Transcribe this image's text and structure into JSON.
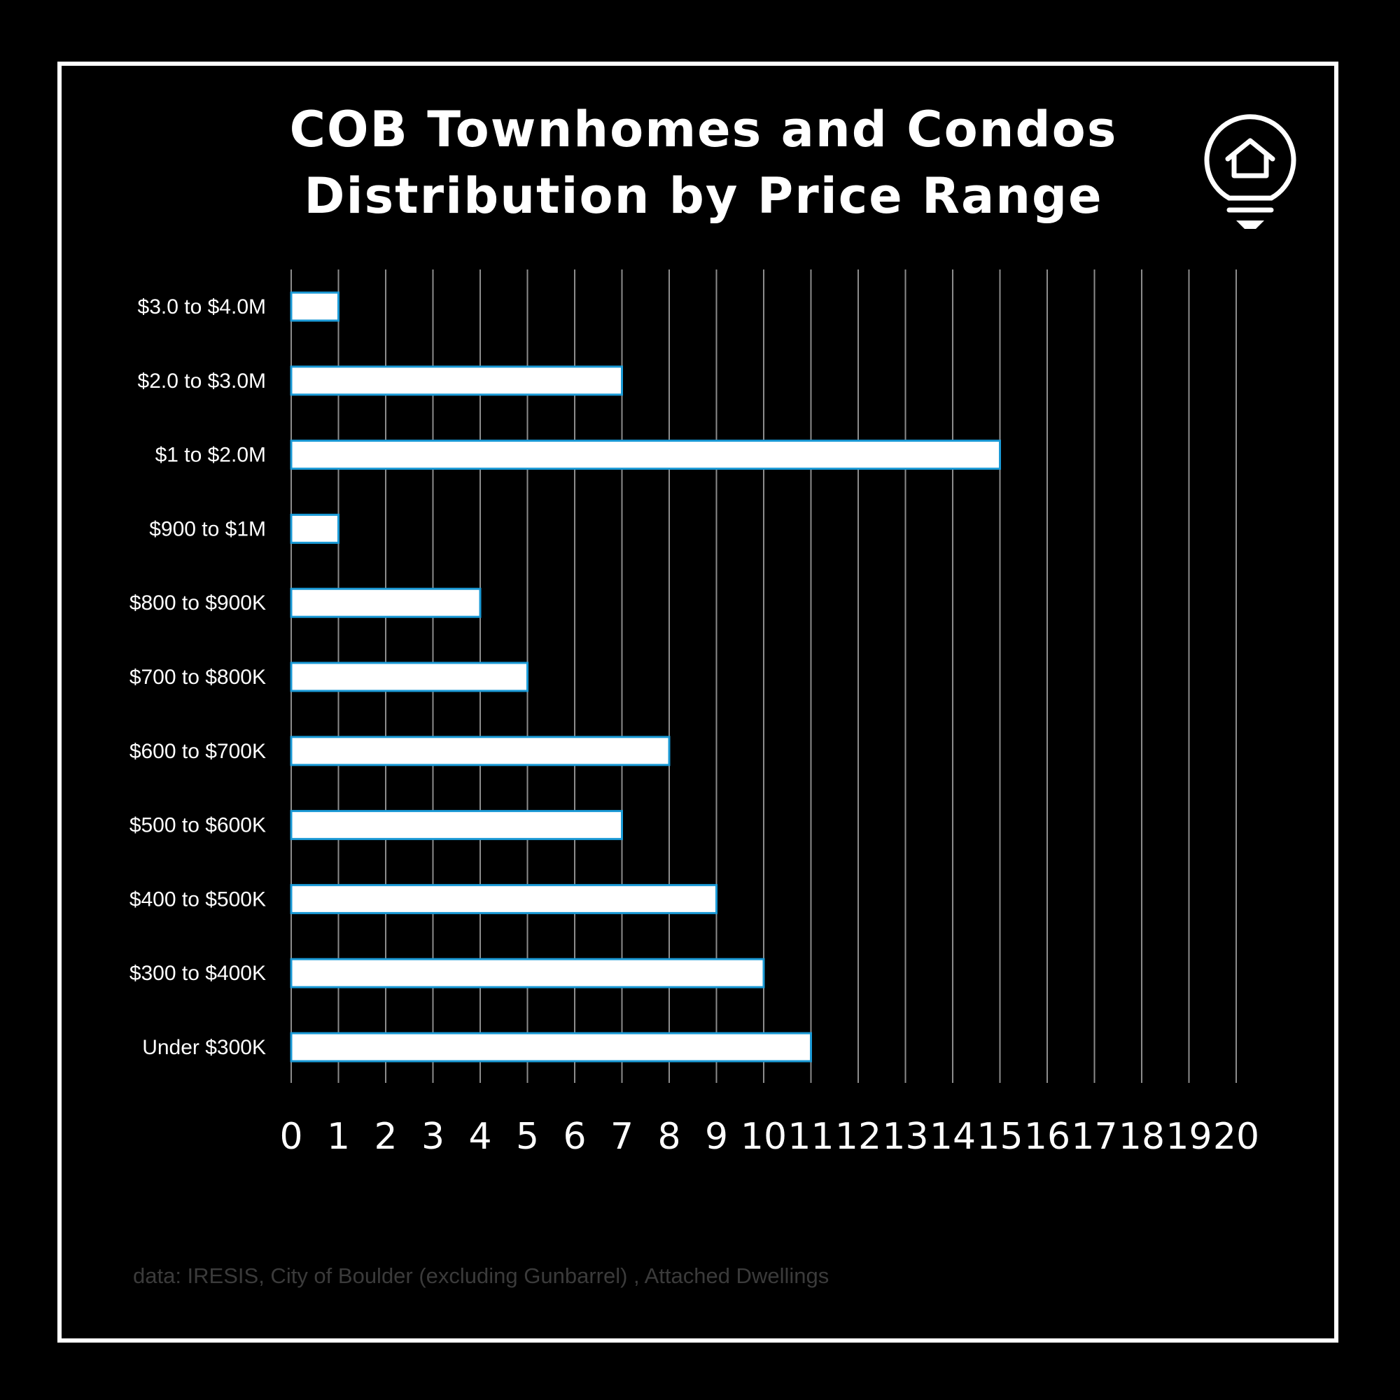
{
  "chart_data": {
    "type": "bar",
    "orientation": "horizontal",
    "title": "COB Townhomes and Condos Distribution by Price Range",
    "title_lines": [
      "COB Townhomes and Condos",
      "Distribution by Price Range"
    ],
    "categories": [
      "$3.0 to $4.0M",
      "$2.0 to $3.0M",
      "$1 to $2.0M",
      "$900 to $1M",
      "$800 to $900K",
      "$700 to $800K",
      "$600 to $700K",
      "$500 to $600K",
      "$400 to $500K",
      "$300 to $400K",
      "Under $300K"
    ],
    "values": [
      1,
      7,
      15,
      1,
      4,
      5,
      8,
      7,
      9,
      10,
      11
    ],
    "xlim": [
      0,
      20
    ],
    "x_ticks": [
      0,
      1,
      2,
      3,
      4,
      5,
      6,
      7,
      8,
      9,
      10,
      11,
      12,
      13,
      14,
      15,
      16,
      17,
      18,
      19,
      20
    ],
    "xlabel": "",
    "ylabel": "",
    "grid": "vertical",
    "legend": "none",
    "source_note": "data: IRESIS, City of Boulder (excluding Gunbarrel) , Attached Dwellings"
  },
  "colors": {
    "background": "#000000",
    "bar_fill": "#ffffff",
    "bar_outline": "#1b9ad6",
    "gridline": "#8c8c8c",
    "text": "#ffffff",
    "source_text": "#3b3b3b"
  },
  "icons": {
    "logo": "lightbulb-house-icon"
  }
}
